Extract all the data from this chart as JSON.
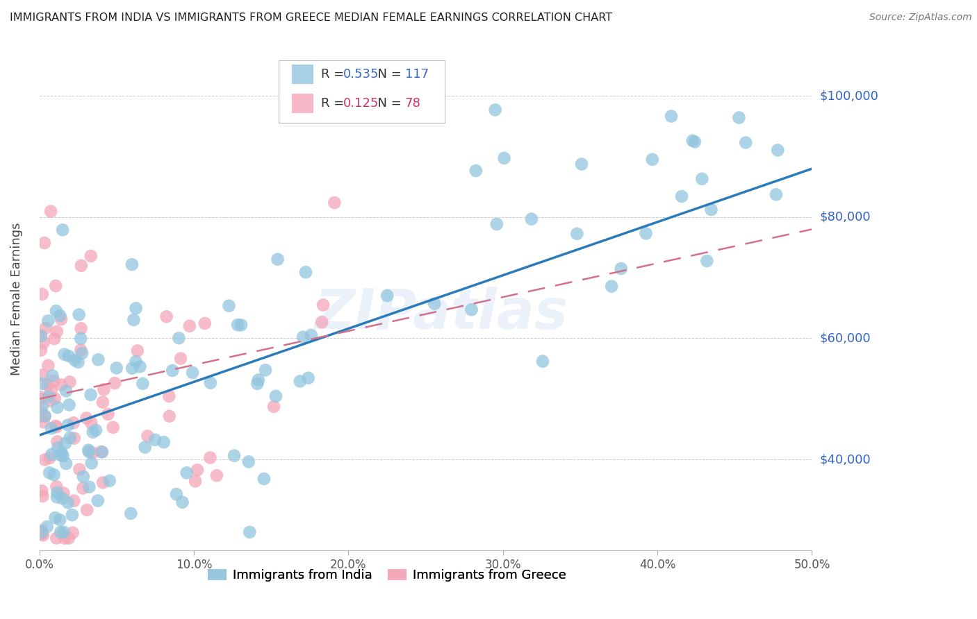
{
  "title": "IMMIGRANTS FROM INDIA VS IMMIGRANTS FROM GREECE MEDIAN FEMALE EARNINGS CORRELATION CHART",
  "source": "Source: ZipAtlas.com",
  "ylabel": "Median Female Earnings",
  "ytick_vals": [
    40000,
    60000,
    80000,
    100000
  ],
  "ytick_labels": [
    "$40,000",
    "$60,000",
    "$80,000",
    "$100,000"
  ],
  "xticks": [
    0.0,
    0.1,
    0.2,
    0.3,
    0.4,
    0.5
  ],
  "xtick_labels": [
    "0.0%",
    "10.0%",
    "20.0%",
    "30.0%",
    "40.0%",
    "50.0%"
  ],
  "india_color": "#92c5de",
  "greece_color": "#f4a6b8",
  "india_line_color": "#2b7bba",
  "greece_line_color": "#d4708a",
  "india_R": 0.535,
  "india_N": 117,
  "greece_R": 0.125,
  "greece_N": 78,
  "watermark": "ZIPatlas",
  "background_color": "#ffffff",
  "grid_color": "#cccccc",
  "xlim": [
    0.0,
    0.5
  ],
  "ylim": [
    25000,
    108000
  ],
  "india_line_x0": 0.0,
  "india_line_y0": 44000,
  "india_line_x1": 0.5,
  "india_line_y1": 88000,
  "greece_line_x0": 0.0,
  "greece_line_y0": 50000,
  "greece_line_x1": 0.5,
  "greece_line_y1": 78000
}
